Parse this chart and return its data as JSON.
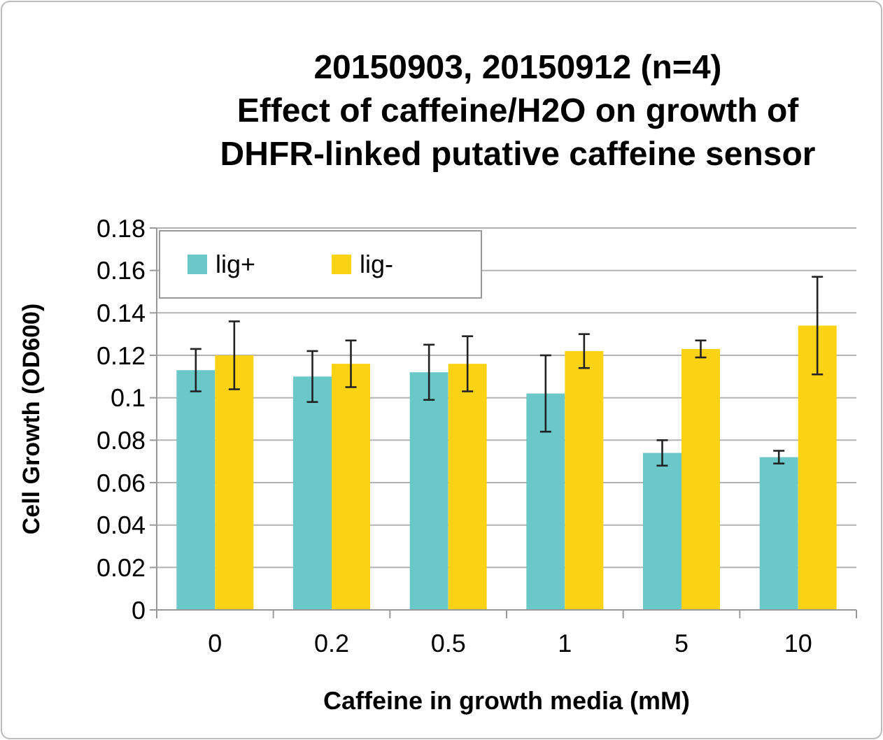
{
  "chart_data": {
    "type": "bar",
    "title": "20150903, 20150912 (n=4)\nEffect of caffeine/H2O on growth of\nDHFR-linked putative caffeine sensor",
    "xlabel": "Caffeine in growth media (mM)",
    "ylabel": "Cell Growth (OD600)",
    "categories": [
      "0",
      "0.2",
      "0.5",
      "1",
      "5",
      "10"
    ],
    "series": [
      {
        "name": "lig+",
        "color": "#6bc8c9",
        "values": [
          0.113,
          0.11,
          0.112,
          0.102,
          0.074,
          0.072
        ],
        "errors": [
          0.01,
          0.012,
          0.013,
          0.018,
          0.006,
          0.003
        ]
      },
      {
        "name": "lig-",
        "color": "#fcd214",
        "values": [
          0.12,
          0.116,
          0.116,
          0.122,
          0.123,
          0.134
        ],
        "errors": [
          0.016,
          0.011,
          0.013,
          0.008,
          0.004,
          0.023
        ]
      }
    ],
    "ylim": [
      0,
      0.18
    ],
    "yticks": [
      0,
      0.02,
      0.04,
      0.06,
      0.08,
      0.1,
      0.12,
      0.14,
      0.16,
      0.18
    ],
    "grid": "y",
    "legend": "top left"
  }
}
